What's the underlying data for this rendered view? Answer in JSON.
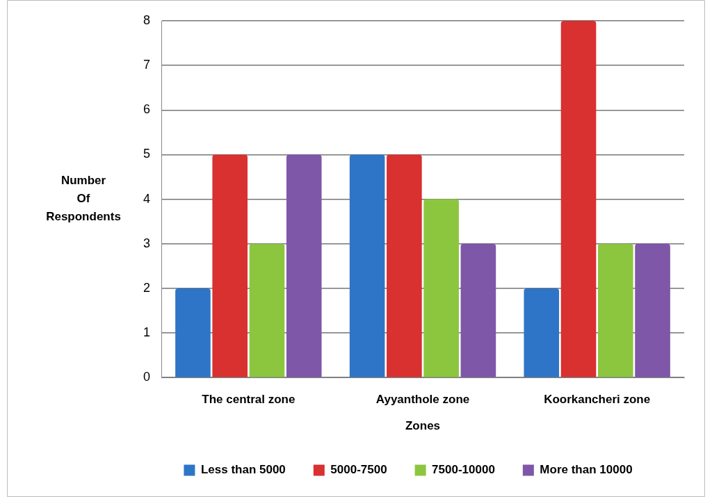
{
  "chart_data": {
    "type": "bar",
    "xlabel": "Zones",
    "ylabel": "Number Of Respondents",
    "categories": [
      "The central zone",
      "Ayyanthole zone",
      "Koorkancheri zone"
    ],
    "series": [
      {
        "name": "Less than 5000",
        "color": "#2e75c8",
        "values": [
          2,
          5,
          2
        ]
      },
      {
        "name": "5000-7500",
        "color": "#d93030",
        "values": [
          5,
          5,
          8
        ]
      },
      {
        "name": "7500-10000",
        "color": "#8cc63f",
        "values": [
          3,
          4,
          3
        ]
      },
      {
        "name": "More than 10000",
        "color": "#7e57a8",
        "values": [
          5,
          3,
          3
        ]
      }
    ],
    "ylim": [
      0,
      8
    ],
    "yticks": [
      0,
      1,
      2,
      3,
      4,
      5,
      6,
      7,
      8
    ],
    "grid": "y",
    "legend": "bottom"
  }
}
